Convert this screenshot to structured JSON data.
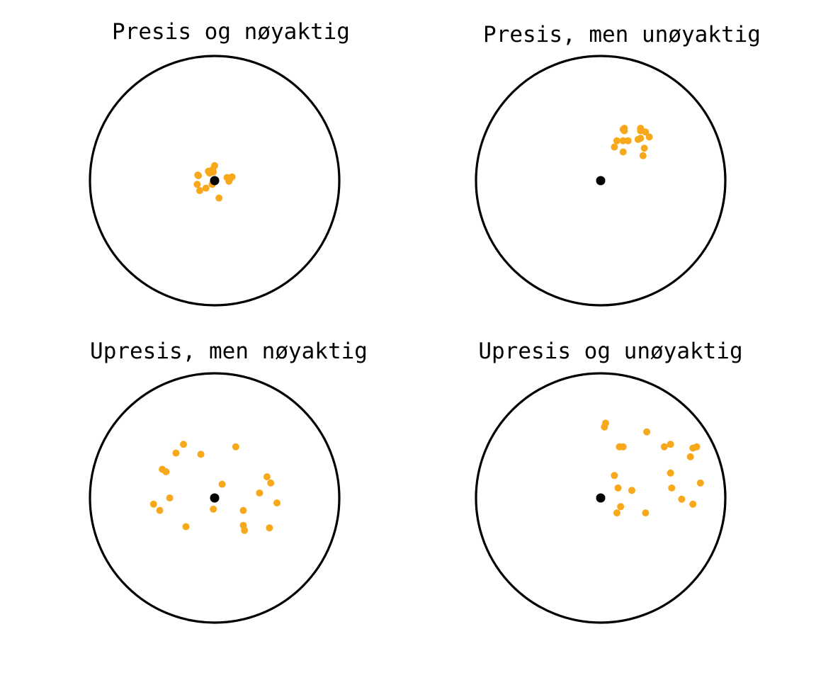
{
  "colors": {
    "ring": "#000000",
    "center": "#000000",
    "shots": "#f7a81b",
    "background": "#ffffff"
  },
  "panels": [
    {
      "title": "Presis og nøyaktig",
      "shots": [
        [
          0.0,
          0.12
        ],
        [
          -0.015,
          0.09
        ],
        [
          -0.05,
          0.075
        ],
        [
          -0.04,
          0.06
        ],
        [
          -0.01,
          0.07
        ],
        [
          -0.135,
          0.045
        ],
        [
          -0.13,
          0.04
        ],
        [
          -0.14,
          -0.03
        ],
        [
          -0.12,
          -0.08
        ],
        [
          -0.07,
          -0.06
        ],
        [
          -0.02,
          -0.03
        ],
        [
          0.1,
          0.025
        ],
        [
          0.14,
          0.03
        ],
        [
          0.115,
          -0.005
        ],
        [
          0.12,
          0.01
        ],
        [
          0.035,
          -0.14
        ]
      ]
    },
    {
      "title": "Presis, men unøyaktig",
      "shots": [
        [
          0.19,
          0.42
        ],
        [
          0.19,
          0.4
        ],
        [
          0.18,
          0.41
        ],
        [
          0.32,
          0.42
        ],
        [
          0.32,
          0.4
        ],
        [
          0.36,
          0.39
        ],
        [
          0.39,
          0.35
        ],
        [
          0.13,
          0.32
        ],
        [
          0.18,
          0.32
        ],
        [
          0.22,
          0.32
        ],
        [
          0.3,
          0.33
        ],
        [
          0.32,
          0.34
        ],
        [
          0.11,
          0.27
        ],
        [
          0.35,
          0.26
        ],
        [
          0.18,
          0.23
        ],
        [
          0.34,
          0.2
        ]
      ]
    },
    {
      "title": "Upresis, men nøyaktig",
      "shots": [
        [
          -0.25,
          0.43
        ],
        [
          -0.31,
          0.36
        ],
        [
          -0.11,
          0.35
        ],
        [
          0.17,
          0.41
        ],
        [
          -0.42,
          0.23
        ],
        [
          -0.39,
          0.21
        ],
        [
          0.06,
          0.11
        ],
        [
          0.42,
          0.17
        ],
        [
          0.45,
          0.12
        ],
        [
          0.36,
          0.04
        ],
        [
          -0.36,
          0.0
        ],
        [
          -0.49,
          -0.05
        ],
        [
          -0.44,
          -0.1
        ],
        [
          -0.01,
          -0.09
        ],
        [
          0.23,
          -0.1
        ],
        [
          0.5,
          -0.04
        ],
        [
          -0.23,
          -0.23
        ],
        [
          0.23,
          -0.22
        ],
        [
          0.24,
          -0.26
        ],
        [
          0.44,
          -0.24
        ]
      ]
    },
    {
      "title": "Upresis og unøyaktig",
      "shots": [
        [
          0.04,
          0.6
        ],
        [
          0.03,
          0.57
        ],
        [
          0.37,
          0.53
        ],
        [
          0.15,
          0.41
        ],
        [
          0.18,
          0.41
        ],
        [
          0.51,
          0.41
        ],
        [
          0.77,
          0.41
        ],
        [
          0.74,
          0.4
        ],
        [
          0.72,
          0.33
        ],
        [
          0.56,
          0.43
        ],
        [
          0.11,
          0.18
        ],
        [
          0.56,
          0.2
        ],
        [
          0.8,
          0.12
        ],
        [
          0.14,
          0.08
        ],
        [
          0.25,
          0.06
        ],
        [
          0.57,
          0.08
        ],
        [
          0.65,
          -0.01
        ],
        [
          0.74,
          -0.05
        ],
        [
          0.16,
          -0.07
        ],
        [
          0.13,
          -0.12
        ],
        [
          0.36,
          -0.12
        ]
      ]
    }
  ]
}
